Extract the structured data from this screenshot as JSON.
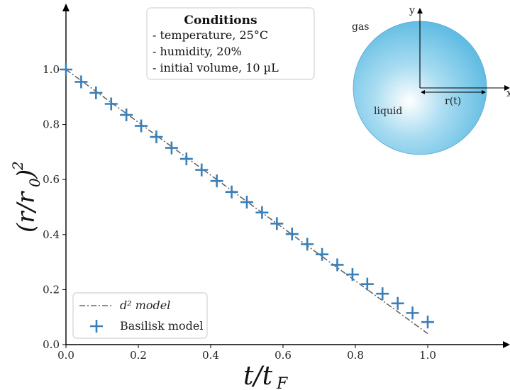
{
  "chart_data": {
    "type": "scatter",
    "xlabel": "t/t_F",
    "ylabel": "(r/r_0)^2",
    "xlim": [
      0.0,
      1.2
    ],
    "ylim": [
      0.0,
      1.2
    ],
    "x_ticks": [
      "0.0",
      "0.2",
      "0.4",
      "0.6",
      "0.8",
      "1.0"
    ],
    "y_ticks": [
      "0.0",
      "0.2",
      "0.4",
      "0.6",
      "0.8",
      "1.0"
    ],
    "grid": false,
    "legend_position": "lower-left",
    "series": [
      {
        "name": "d² model",
        "style": "dash-dot line",
        "color": "#666666",
        "x": [
          0.0,
          1.0
        ],
        "y": [
          1.0,
          0.04
        ]
      },
      {
        "name": "Basilisk model",
        "style": "plus markers",
        "color": "#3a7fb8",
        "x": [
          0.0,
          0.042,
          0.083,
          0.125,
          0.167,
          0.208,
          0.25,
          0.292,
          0.333,
          0.375,
          0.417,
          0.458,
          0.5,
          0.542,
          0.583,
          0.625,
          0.667,
          0.708,
          0.75,
          0.792,
          0.833,
          0.875,
          0.917,
          0.958,
          1.0
        ],
        "y": [
          1.0,
          0.955,
          0.915,
          0.875,
          0.835,
          0.795,
          0.755,
          0.715,
          0.675,
          0.635,
          0.595,
          0.555,
          0.518,
          0.48,
          0.44,
          0.402,
          0.365,
          0.328,
          0.29,
          0.255,
          0.22,
          0.185,
          0.15,
          0.115,
          0.082
        ]
      }
    ],
    "annotations": {
      "conditions_title": "Conditions",
      "conditions": [
        "- temperature, 25°C",
        "- humidity, 20%",
        "- initial volume, 10 µL"
      ],
      "inset": {
        "gas_label": "gas",
        "liquid_label": "liquid",
        "radius_label": "r(t)",
        "y_axis_label": "y",
        "x_axis_label": "x"
      }
    }
  }
}
